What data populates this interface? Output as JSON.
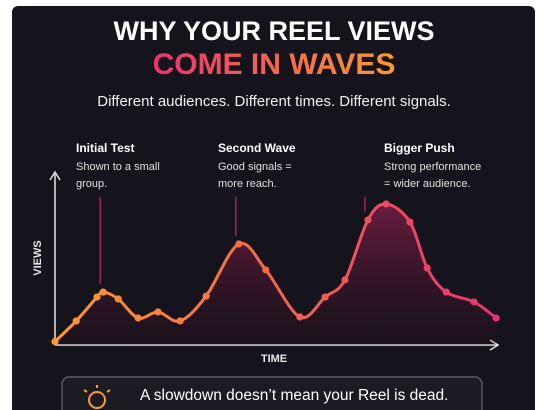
{
  "chart_data": {
    "type": "line",
    "title": "WHY YOUR REEL VIEWS",
    "title_highlight": "COME IN WAVES",
    "subtitle": "Different audiences. Different times. Different signals.",
    "y_label": "VIEWS",
    "x_label": "TIME",
    "x": [
      0,
      4.8,
      9.5,
      10.9,
      14.3,
      18.8,
      23.3,
      28.3,
      34.2,
      41.6,
      47.7,
      55.4,
      61.1,
      65.6,
      70.8,
      74.9,
      80.3,
      84.2,
      88.5,
      94.8,
      99.8
    ],
    "values": [
      2,
      13.9,
      27.7,
      30.6,
      26.6,
      15.6,
      19.1,
      13.9,
      28.3,
      58.4,
      43.4,
      16.2,
      27.7,
      37.6,
      72.3,
      81.5,
      71.1,
      44.5,
      30.6,
      24.9,
      15.6
    ],
    "xlim": [
      0,
      100
    ],
    "ylim": [
      0,
      100
    ],
    "colors": [
      "#ff9a2e",
      "#e8336f"
    ],
    "annotations": [
      {
        "title": "Initial Test",
        "lines": [
          "Shown to a small",
          "group."
        ]
      },
      {
        "title": "Second Wave",
        "lines": [
          "Good signals =",
          "more reach."
        ]
      },
      {
        "title": "Bigger Push",
        "lines": [
          "Strong performance",
          "= wider audience."
        ]
      }
    ],
    "note": "A slowdown doesn’t mean your Reel is dead."
  }
}
